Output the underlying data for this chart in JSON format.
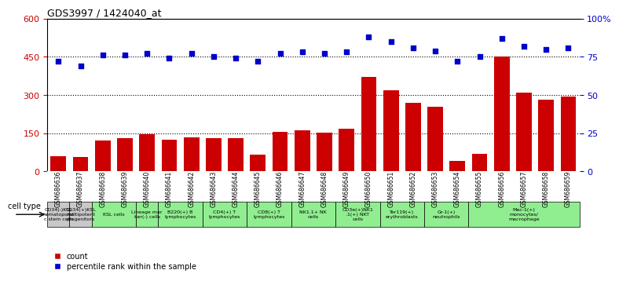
{
  "title": "GDS3997 / 1424040_at",
  "gsm_ids": [
    "GSM686636",
    "GSM686637",
    "GSM686638",
    "GSM686639",
    "GSM686640",
    "GSM686641",
    "GSM686642",
    "GSM686643",
    "GSM686644",
    "GSM686645",
    "GSM686646",
    "GSM686647",
    "GSM686648",
    "GSM686649",
    "GSM686650",
    "GSM686651",
    "GSM686652",
    "GSM686653",
    "GSM686654",
    "GSM686655",
    "GSM686656",
    "GSM686657",
    "GSM686658",
    "GSM686659"
  ],
  "counts": [
    60,
    55,
    120,
    130,
    145,
    125,
    135,
    130,
    130,
    65,
    155,
    160,
    152,
    167,
    370,
    320,
    270,
    255,
    40,
    68,
    450,
    308,
    282,
    295
  ],
  "percentiles": [
    72,
    69,
    76,
    76,
    77,
    74,
    77,
    75,
    74,
    72,
    77,
    78,
    77,
    78,
    88,
    85,
    81,
    79,
    72,
    75,
    87,
    82,
    80,
    81
  ],
  "cell_type_groups": [
    {
      "start": 0,
      "end": 1,
      "label": "CD34(-)KSL\nhematopoiet\nc stem cells",
      "color": "#c8c8c8"
    },
    {
      "start": 1,
      "end": 2,
      "label": "CD34(+)KSL\nmultipotent\nprogenitors",
      "color": "#c8c8c8"
    },
    {
      "start": 2,
      "end": 4,
      "label": "KSL cells",
      "color": "#90ee90"
    },
    {
      "start": 4,
      "end": 5,
      "label": "Lineage mar\nker(-) cells",
      "color": "#90ee90"
    },
    {
      "start": 5,
      "end": 7,
      "label": "B220(+) B\nlymphocytes",
      "color": "#90ee90"
    },
    {
      "start": 7,
      "end": 9,
      "label": "CD4(+) T\nlymphocytes",
      "color": "#90ee90"
    },
    {
      "start": 9,
      "end": 11,
      "label": "CD8(+) T\nlymphocytes",
      "color": "#90ee90"
    },
    {
      "start": 11,
      "end": 13,
      "label": "NK1.1+ NK\ncells",
      "color": "#90ee90"
    },
    {
      "start": 13,
      "end": 15,
      "label": "CD3e(+)NK1\n.1(+) NKT\ncells",
      "color": "#90ee90"
    },
    {
      "start": 15,
      "end": 17,
      "label": "Ter119(+)\nerythroblasts",
      "color": "#90ee90"
    },
    {
      "start": 17,
      "end": 19,
      "label": "Gr-1(+)\nneutrophils",
      "color": "#90ee90"
    },
    {
      "start": 19,
      "end": 24,
      "label": "Mac-1(+)\nmonocytes/\nmacrophage",
      "color": "#90ee90"
    }
  ],
  "bar_color": "#cc0000",
  "dot_color": "#0000cc",
  "left_ylim": [
    0,
    600
  ],
  "left_yticks": [
    0,
    150,
    300,
    450,
    600
  ],
  "right_ylim": [
    0,
    100
  ],
  "right_yticks": [
    0,
    25,
    50,
    75,
    100
  ],
  "right_yticklabels": [
    "0",
    "25",
    "50",
    "75",
    "100%"
  ],
  "bg_color": "#ffffff",
  "left_tick_color": "#cc0000",
  "right_tick_color": "#0000cc"
}
